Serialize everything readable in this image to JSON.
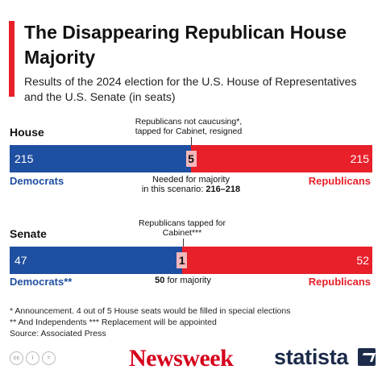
{
  "title": "The Disappearing Republican House Majority",
  "subtitle": "Results of the 2024 election for the U.S. House of Representatives and the U.S. Senate (in seats)",
  "chart_data": [
    {
      "type": "bar",
      "section": "House",
      "categories": [
        "Democrats",
        "Republicans not caucusing*, tapped for Cabinet, resigned",
        "Republicans"
      ],
      "values": [
        215,
        5,
        215
      ],
      "series_labels": {
        "left": "Democrats",
        "right": "Republicans"
      },
      "annotations": {
        "middle_note": "Republicans not caucusing*, tapped for Cabinet, resigned",
        "majority_note_line1": "Needed for majority",
        "majority_note_line2_prefix": "in this scenario: ",
        "majority_note_value": "216–218"
      },
      "colors": {
        "democrats": "#1f4fa0",
        "republicans": "#e8202a",
        "middle": "#f5b8bb"
      }
    },
    {
      "type": "bar",
      "section": "Senate",
      "categories": [
        "Democrats**",
        "Republicans tapped for Cabinet***",
        "Republicans"
      ],
      "values": [
        47,
        1,
        52
      ],
      "series_labels": {
        "left": "Democrats**",
        "right": "Republicans"
      },
      "annotations": {
        "middle_note": "Republicans tapped for Cabinet***",
        "majority_value": "50",
        "majority_text": "for majority"
      },
      "colors": {
        "democrats": "#1f4fa0",
        "republicans": "#e8202a",
        "middle": "#f5b8bb"
      }
    }
  ],
  "footnotes": [
    "*  Announcement. 4 out of 5 House seats would be filled in special elections",
    "** And Independents    *** Replacement will be appointed",
    "Source: Associated Press"
  ],
  "branding": {
    "newsweek": "Newsweek",
    "statista": "statista",
    "license_icons": [
      "cc",
      "i",
      "="
    ]
  }
}
